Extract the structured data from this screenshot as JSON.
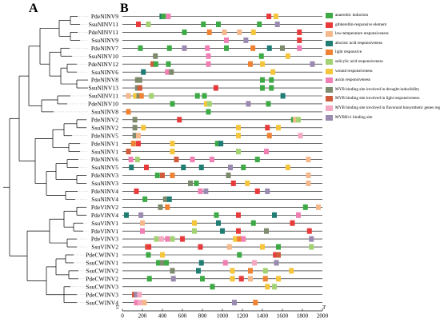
{
  "panels": {
    "a": "A",
    "b": "B"
  },
  "axis": {
    "ticks": [
      0,
      200,
      400,
      600,
      800,
      1000,
      1200,
      1400,
      1600,
      1800,
      2000
    ],
    "min": 0,
    "max": 2000,
    "left_end": "5'",
    "right_end": "3'"
  },
  "legend": [
    {
      "id": "anaerobic",
      "label": "anaerobic induction",
      "color": "#3daa45"
    },
    {
      "id": "gibberellin",
      "label": "gibberellin-responsive element",
      "color": "#e83a3a"
    },
    {
      "id": "lowtemp",
      "label": "low-temperature responsiveness",
      "color": "#f5b88b"
    },
    {
      "id": "aba",
      "label": "abscisic acid responsiveness",
      "color": "#1f7d74"
    },
    {
      "id": "light",
      "label": "light responsive",
      "color": "#ef8233"
    },
    {
      "id": "salicylic",
      "label": "salicylic acid responsiveness",
      "color": "#a3d273"
    },
    {
      "id": "wound",
      "label": "wound responsiveness",
      "color": "#f5c63c"
    },
    {
      "id": "auxin",
      "label": "auxin responsiveness",
      "color": "#f07fb4"
    },
    {
      "id": "myb_drought",
      "label": "MYB binding site involved in drought-inducibility",
      "color": "#7d8a6c"
    },
    {
      "id": "myb_light",
      "label": "MYB binding site involved in light responsiveness",
      "color": "#d05a3a"
    },
    {
      "id": "myb_flav",
      "label": "MYB binding site involved in flavonoid biosynthetic genes regulation",
      "color": "#f4a8c2"
    },
    {
      "id": "mybhv1",
      "label": "MYBHv1 binding site",
      "color": "#9a8aaf"
    }
  ],
  "genes": [
    {
      "name": "PdeNINV9",
      "elements": [
        [
          "aba",
          395
        ],
        [
          "anaerobic",
          410
        ],
        [
          "auxin",
          460
        ],
        [
          "gibberellin",
          1465
        ],
        [
          "wound",
          1535
        ]
      ]
    },
    {
      "name": "SsuNINV11",
      "elements": [
        [
          "gibberellin",
          160
        ],
        [
          "salicylic",
          260
        ],
        [
          "anaerobic",
          810
        ],
        [
          "anaerobic",
          960
        ],
        [
          "anaerobic",
          1370
        ],
        [
          "mybhv1",
          1550
        ]
      ]
    },
    {
      "name": "PdeNINV11",
      "elements": [
        [
          "anaerobic",
          620
        ],
        [
          "light",
          870
        ],
        [
          "lowtemp",
          1020
        ],
        [
          "lowtemp",
          1170
        ],
        [
          "wound",
          1310
        ],
        [
          "gibberellin",
          1770
        ]
      ]
    },
    {
      "name": "SsuNINV9",
      "elements": [
        [
          "auxin",
          1040
        ],
        [
          "mybhv1",
          1235
        ],
        [
          "gibberellin",
          1770
        ]
      ]
    },
    {
      "name": "PdeNINV7",
      "elements": [
        [
          "anaerobic",
          180
        ],
        [
          "anaerobic",
          470
        ],
        [
          "mybhv1",
          620
        ],
        [
          "auxin",
          850
        ],
        [
          "anaerobic",
          1040
        ],
        [
          "light",
          1305
        ],
        [
          "aba",
          1470
        ],
        [
          "myb_drought",
          1600
        ],
        [
          "auxin",
          1770
        ]
      ]
    },
    {
      "name": "SsuNINV10",
      "elements": [
        [
          "myb_drought",
          330
        ],
        [
          "auxin",
          860
        ],
        [
          "anaerobic",
          1390
        ],
        [
          "wound",
          1655
        ]
      ]
    },
    {
      "name": "PdeNINV12",
      "elements": [
        [
          "myb_light",
          305
        ],
        [
          "anaerobic",
          335
        ],
        [
          "anaerobic",
          460
        ],
        [
          "auxin",
          860
        ],
        [
          "light",
          1280
        ],
        [
          "wound",
          1400
        ],
        [
          "mybhv1",
          1900
        ]
      ]
    },
    {
      "name": "SsuNINV6",
      "elements": [
        [
          "aba",
          210
        ],
        [
          "auxin",
          450
        ],
        [
          "myb_drought",
          490
        ],
        [
          "wound",
          1505
        ]
      ]
    },
    {
      "name": "PdeNINV8",
      "elements": [
        [
          "myb_drought",
          150
        ],
        [
          "myb_drought",
          175
        ],
        [
          "anaerobic",
          1400
        ],
        [
          "anaerobic",
          1490
        ]
      ]
    },
    {
      "name": "SsuNINV13",
      "elements": [
        [
          "myb_drought",
          150
        ],
        [
          "myb_light",
          175
        ],
        [
          "gibberellin",
          935
        ],
        [
          "anaerobic",
          1400
        ],
        [
          "anaerobic",
          1490
        ]
      ]
    },
    {
      "name": "SsuNINV11",
      "elements": [
        [
          "lowtemp",
          60
        ],
        [
          "wound",
          130
        ],
        [
          "myb_drought",
          165
        ],
        [
          "light",
          190
        ],
        [
          "salicylic",
          290
        ],
        [
          "anaerobic",
          750
        ],
        [
          "anaerobic",
          820
        ],
        [
          "aba",
          1605
        ]
      ]
    },
    {
      "name": "PdeNINV10",
      "elements": [
        [
          "anaerobic",
          500
        ],
        [
          "wound",
          840
        ],
        [
          "salicylic",
          870
        ],
        [
          "mybhv1",
          1260
        ],
        [
          "anaerobic",
          1460
        ]
      ]
    },
    {
      "name": "SsuNINV8",
      "elements": [
        [
          "light",
          60
        ],
        [
          "anaerobic",
          860
        ]
      ]
    },
    {
      "name": "PdeNINV2",
      "elements": [
        [
          "myb_drought",
          125
        ],
        [
          "gibberellin",
          570
        ],
        [
          "anaerobic",
          1710
        ],
        [
          "lowtemp",
          1730
        ],
        [
          "salicylic",
          1760
        ]
      ]
    },
    {
      "name": "SsuNINV2",
      "elements": [
        [
          "myb_drought",
          125
        ],
        [
          "wound",
          210
        ],
        [
          "wound",
          1160
        ],
        [
          "gibberellin",
          1450
        ],
        [
          "wound",
          1560
        ]
      ]
    },
    {
      "name": "PdeNINV5",
      "elements": [
        [
          "myb_drought",
          125
        ],
        [
          "lowtemp",
          160
        ],
        [
          "wound",
          1160
        ],
        [
          "light",
          1470
        ],
        [
          "myb_flav",
          1780
        ]
      ]
    },
    {
      "name": "PdeNINV1",
      "elements": [
        [
          "light",
          110
        ],
        [
          "gibberellin",
          160
        ],
        [
          "wound",
          500
        ],
        [
          "anaerobic",
          950
        ],
        [
          "aba",
          985
        ]
      ]
    },
    {
      "name": "SsuNINV1",
      "elements": [
        [
          "myb_light",
          60
        ],
        [
          "wound",
          500
        ],
        [
          "salicylic",
          1160
        ],
        [
          "auxin",
          1440
        ]
      ]
    },
    {
      "name": "PdeNINV6",
      "elements": [
        [
          "auxin",
          85
        ],
        [
          "salicylic",
          150
        ],
        [
          "myb_light",
          540
        ],
        [
          "auxin",
          700
        ],
        [
          "auxin",
          895
        ],
        [
          "anaerobic",
          1350
        ],
        [
          "lowtemp",
          1860
        ]
      ]
    },
    {
      "name": "SsuNINV5",
      "elements": [
        [
          "aba",
          90
        ],
        [
          "gibberellin",
          240
        ],
        [
          "aba",
          610
        ],
        [
          "aba",
          790
        ],
        [
          "mybhv1",
          1080
        ],
        [
          "anaerobic",
          1210
        ],
        [
          "wound",
          1655
        ]
      ]
    },
    {
      "name": "PdeNINV3",
      "elements": [
        [
          "anaerobic",
          350
        ],
        [
          "myb_light",
          400
        ],
        [
          "light",
          500
        ],
        [
          "myb_drought",
          1060
        ],
        [
          "lowtemp",
          1860
        ]
      ]
    },
    {
      "name": "SsuNINV3",
      "elements": [
        [
          "myb_drought",
          680
        ],
        [
          "anaerobic",
          740
        ],
        [
          "gibberellin",
          1110
        ],
        [
          "wound",
          1250
        ],
        [
          "lowtemp",
          1860
        ]
      ]
    },
    {
      "name": "PdeNINV4",
      "elements": [
        [
          "gibberellin",
          140
        ],
        [
          "auxin",
          780
        ],
        [
          "mybhv1",
          835
        ],
        [
          "gibberellin",
          1350
        ],
        [
          "mybhv1",
          1450
        ]
      ]
    },
    {
      "name": "SsuNINV4",
      "elements": [
        [
          "anaerobic",
          225
        ],
        [
          "myb_drought",
          430
        ],
        [
          "aba",
          470
        ]
      ]
    },
    {
      "name": "PdeVINV2",
      "elements": [
        [
          "myb_drought",
          380
        ],
        [
          "light",
          450
        ],
        [
          "anaerobic",
          1830
        ],
        [
          "lowtemp",
          1960
        ]
      ]
    },
    {
      "name": "PdeVINV4",
      "elements": [
        [
          "aba",
          40
        ],
        [
          "mybhv1",
          185
        ],
        [
          "anaerobic",
          940
        ],
        [
          "gibberellin",
          1160
        ],
        [
          "aba",
          1520
        ],
        [
          "auxin",
          1760
        ]
      ]
    },
    {
      "name": "SsuVINV1",
      "elements": [
        [
          "lowtemp",
          200
        ],
        [
          "wound",
          720
        ],
        [
          "aba",
          960
        ],
        [
          "anaerobic",
          1310
        ],
        [
          "gibberellin",
          1700
        ]
      ]
    },
    {
      "name": "PdeVINV1",
      "elements": [
        [
          "auxin",
          200
        ],
        [
          "salicylic",
          720
        ],
        [
          "aba",
          1000
        ],
        [
          "gibberellin",
          1160
        ],
        [
          "myb_drought",
          1440
        ],
        [
          "gibberellin",
          1870
        ]
      ]
    },
    {
      "name": "PdeVINV3",
      "elements": [
        [
          "salicylic",
          340
        ],
        [
          "myb_flav",
          390
        ],
        [
          "auxin",
          450
        ],
        [
          "salicylic",
          500
        ],
        [
          "gibberellin",
          600
        ],
        [
          "wound",
          1130
        ],
        [
          "light",
          1170
        ],
        [
          "auxin",
          1210
        ],
        [
          "mybhv1",
          1890
        ]
      ]
    },
    {
      "name": "SsuVINV2",
      "elements": [
        [
          "myb_light",
          250
        ],
        [
          "gibberellin",
          265
        ],
        [
          "gibberellin",
          780
        ],
        [
          "lowtemp",
          1070
        ],
        [
          "wound",
          1400
        ],
        [
          "anaerobic",
          1560
        ],
        [
          "salicylic",
          1890
        ]
      ]
    },
    {
      "name": "PdeCWINV1",
      "elements": [
        [
          "anaerobic",
          260
        ],
        [
          "wound",
          400
        ],
        [
          "anaerobic",
          1170
        ],
        [
          "gibberellin",
          1530
        ],
        [
          "myb_light",
          1560
        ]
      ]
    },
    {
      "name": "SsuCWINV1",
      "elements": [
        [
          "anaerobic",
          360
        ],
        [
          "myb_drought",
          400
        ],
        [
          "anaerobic",
          440
        ],
        [
          "aba",
          790
        ],
        [
          "auxin",
          1030
        ],
        [
          "myb_flav",
          1320
        ],
        [
          "mybhv1",
          1540
        ]
      ]
    },
    {
      "name": "SsuCWINV2",
      "elements": [
        [
          "myb_drought",
          500
        ],
        [
          "aba",
          760
        ],
        [
          "wound",
          1100
        ],
        [
          "light",
          1280
        ],
        [
          "salicylic",
          1430
        ],
        [
          "wound",
          1690
        ]
      ]
    },
    {
      "name": "PdeCWINV2",
      "elements": [
        [
          "anaerobic",
          270
        ],
        [
          "mybhv1",
          510
        ],
        [
          "anaerobic",
          800
        ],
        [
          "wound",
          1100
        ],
        [
          "gibberellin",
          1190
        ],
        [
          "lowtemp",
          1280
        ],
        [
          "light",
          1430
        ],
        [
          "wound",
          1560
        ]
      ]
    },
    {
      "name": "SsuCWINV3",
      "elements": [
        [
          "anaerobic",
          900
        ],
        [
          "wound",
          1450
        ],
        [
          "salicylic",
          1520
        ]
      ]
    },
    {
      "name": "PdeCWINV3",
      "elements": [
        [
          "myb_light",
          120
        ],
        [
          "mybhv1",
          140
        ],
        [
          "myb_flav",
          170
        ]
      ]
    },
    {
      "name": "SsuCWINV4",
      "elements": [
        [
          "auxin",
          140
        ],
        [
          "myb_flav",
          175
        ],
        [
          "lowtemp",
          220
        ],
        [
          "mybhv1",
          1120
        ],
        [
          "light",
          1330
        ]
      ]
    }
  ]
}
